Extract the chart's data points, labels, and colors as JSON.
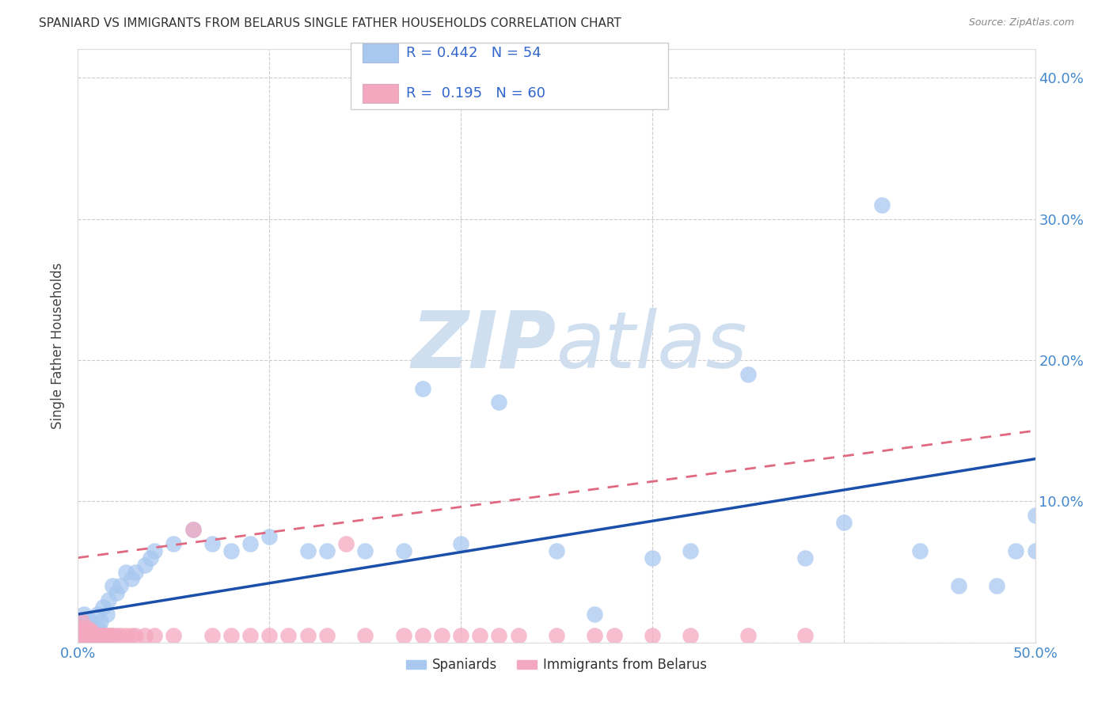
{
  "title": "SPANIARD VS IMMIGRANTS FROM BELARUS SINGLE FATHER HOUSEHOLDS CORRELATION CHART",
  "source": "Source: ZipAtlas.com",
  "ylabel": "Single Father Households",
  "xlim": [
    0.0,
    0.5
  ],
  "ylim": [
    0.0,
    0.42
  ],
  "blue_color": "#a8c8f0",
  "pink_color": "#f4a8c0",
  "trendline_blue_color": "#1a4faa",
  "trendline_pink_color": "#e06880",
  "watermark_color": "#d0dff0",
  "blue_trendline_x0": 0.0,
  "blue_trendline_y0": 0.02,
  "blue_trendline_x1": 0.5,
  "blue_trendline_y1": 0.13,
  "pink_trendline_x0": 0.0,
  "pink_trendline_y0": 0.06,
  "pink_trendline_x1": 0.5,
  "pink_trendline_y1": 0.15,
  "blue_scatter_x": [
    0.001,
    0.002,
    0.002,
    0.003,
    0.003,
    0.004,
    0.005,
    0.005,
    0.006,
    0.007,
    0.008,
    0.009,
    0.01,
    0.011,
    0.012,
    0.013,
    0.015,
    0.016,
    0.018,
    0.02,
    0.022,
    0.025,
    0.028,
    0.03,
    0.035,
    0.038,
    0.04,
    0.05,
    0.06,
    0.07,
    0.08,
    0.09,
    0.1,
    0.12,
    0.13,
    0.15,
    0.17,
    0.18,
    0.2,
    0.22,
    0.25,
    0.27,
    0.3,
    0.32,
    0.35,
    0.38,
    0.4,
    0.42,
    0.44,
    0.46,
    0.48,
    0.49,
    0.5,
    0.5
  ],
  "blue_scatter_y": [
    0.01,
    0.015,
    0.005,
    0.02,
    0.01,
    0.01,
    0.015,
    0.005,
    0.01,
    0.015,
    0.01,
    0.005,
    0.02,
    0.01,
    0.015,
    0.025,
    0.02,
    0.03,
    0.04,
    0.035,
    0.04,
    0.05,
    0.045,
    0.05,
    0.055,
    0.06,
    0.065,
    0.07,
    0.08,
    0.07,
    0.065,
    0.07,
    0.075,
    0.065,
    0.065,
    0.065,
    0.065,
    0.18,
    0.07,
    0.17,
    0.065,
    0.02,
    0.06,
    0.065,
    0.19,
    0.06,
    0.085,
    0.31,
    0.065,
    0.04,
    0.04,
    0.065,
    0.09,
    0.065
  ],
  "pink_scatter_x": [
    0.001,
    0.001,
    0.002,
    0.002,
    0.003,
    0.003,
    0.004,
    0.004,
    0.005,
    0.005,
    0.006,
    0.006,
    0.007,
    0.007,
    0.008,
    0.008,
    0.009,
    0.009,
    0.01,
    0.01,
    0.011,
    0.012,
    0.013,
    0.014,
    0.015,
    0.016,
    0.017,
    0.018,
    0.02,
    0.022,
    0.025,
    0.028,
    0.03,
    0.035,
    0.04,
    0.05,
    0.06,
    0.07,
    0.08,
    0.09,
    0.1,
    0.11,
    0.12,
    0.13,
    0.14,
    0.15,
    0.17,
    0.18,
    0.19,
    0.2,
    0.21,
    0.22,
    0.23,
    0.25,
    0.27,
    0.28,
    0.3,
    0.32,
    0.35,
    0.38
  ],
  "pink_scatter_y": [
    0.005,
    0.01,
    0.008,
    0.015,
    0.005,
    0.01,
    0.005,
    0.008,
    0.005,
    0.01,
    0.005,
    0.008,
    0.005,
    0.008,
    0.005,
    0.005,
    0.005,
    0.005,
    0.005,
    0.005,
    0.005,
    0.005,
    0.005,
    0.005,
    0.005,
    0.005,
    0.005,
    0.005,
    0.005,
    0.005,
    0.005,
    0.005,
    0.005,
    0.005,
    0.005,
    0.005,
    0.08,
    0.005,
    0.005,
    0.005,
    0.005,
    0.005,
    0.005,
    0.005,
    0.07,
    0.005,
    0.005,
    0.005,
    0.005,
    0.005,
    0.005,
    0.005,
    0.005,
    0.005,
    0.005,
    0.005,
    0.005,
    0.005,
    0.005,
    0.005
  ]
}
